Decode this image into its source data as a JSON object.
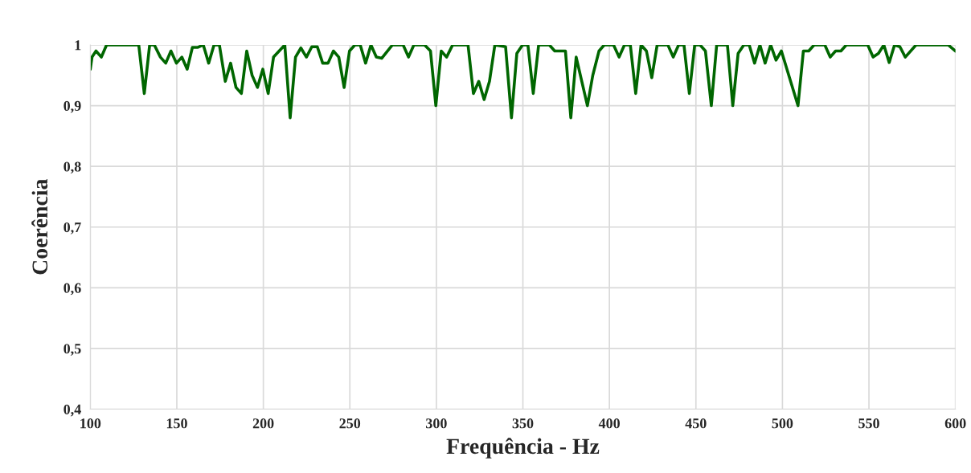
{
  "chart_data": {
    "type": "line",
    "xlabel": "Frequência - Hz",
    "ylabel": "Coerência",
    "xlim": [
      100,
      600
    ],
    "xticks": [
      100,
      150,
      200,
      250,
      300,
      350,
      400,
      450,
      500,
      550,
      600
    ],
    "ylim": [
      0.4,
      1.0
    ],
    "yticks": [
      {
        "value": 0.4,
        "label": "0,4"
      },
      {
        "value": 0.5,
        "label": "0,5"
      },
      {
        "value": 0.6,
        "label": "0,6"
      },
      {
        "value": 0.7,
        "label": "0,7"
      },
      {
        "value": 0.8,
        "label": "0,8"
      },
      {
        "value": 0.9,
        "label": "0,9"
      },
      {
        "value": 1.0,
        "label": "1"
      }
    ],
    "grid": true,
    "marker": "none",
    "line_style": "solid",
    "series": [
      {
        "color": "#006600",
        "x": [
          100,
          101,
          103.3,
          106.4,
          109.4,
          128,
          131.2,
          134.3,
          137,
          140.5,
          143.6,
          146.6,
          149.8,
          152.9,
          156,
          159,
          162.2,
          165.3,
          168.4,
          171.5,
          174.6,
          178,
          181.1,
          184.2,
          187.3,
          190.4,
          193.5,
          196.6,
          199.7,
          202.8,
          205.9,
          212.4,
          215.5,
          218.6,
          221.7,
          224.9,
          228,
          231.2,
          234.3,
          237.4,
          240.5,
          243.6,
          246.7,
          249.8,
          252.9,
          256,
          259.1,
          262.2,
          265.3,
          268.4,
          274.6,
          280.8,
          283.9,
          287,
          293.2,
          296.6,
          299.7,
          302.8,
          305.9,
          309.4,
          318.3,
          321.4,
          324.5,
          327.6,
          330.7,
          333.8,
          340,
          343.4,
          346.5,
          349.8,
          352.9,
          356,
          359.1,
          365.3,
          368.4,
          374.6,
          377.7,
          380.8,
          387.3,
          390.4,
          394,
          397,
          402.4,
          405.6,
          408.7,
          412.1,
          415.2,
          418.3,
          421.4,
          424.5,
          427.6,
          433.8,
          436.9,
          440,
          443.1,
          446.2,
          449.3,
          452.4,
          455.5,
          458.9,
          462,
          468.2,
          471.3,
          474.4,
          477.7,
          480.8,
          483.9,
          487,
          490,
          493.2,
          496.3,
          499.4,
          509,
          512.1,
          515.2,
          518.3,
          524.5,
          527.6,
          530.7,
          533.8,
          536.9,
          549.3,
          552.4,
          555.5,
          558.6,
          561.7,
          564.8,
          567.9,
          571,
          577.2,
          595.8,
          600
        ],
        "values": [
          0.96,
          0.98,
          0.99,
          0.98,
          1.0,
          1.0,
          0.92,
          1.0,
          1.0,
          0.98,
          0.97,
          0.99,
          0.97,
          0.98,
          0.96,
          0.996,
          0.996,
          1.0,
          0.97,
          1.0,
          1.0,
          0.94,
          0.97,
          0.93,
          0.92,
          0.99,
          0.95,
          0.93,
          0.96,
          0.92,
          0.98,
          1.0,
          0.88,
          0.98,
          0.995,
          0.98,
          0.997,
          0.997,
          0.97,
          0.97,
          0.99,
          0.98,
          0.93,
          0.99,
          1.0,
          1.0,
          0.97,
          1.0,
          0.98,
          0.978,
          1.0,
          1.0,
          0.98,
          1.0,
          1.0,
          0.99,
          0.9,
          0.99,
          0.98,
          1.0,
          1.0,
          0.92,
          0.94,
          0.91,
          0.94,
          1.0,
          0.997,
          0.88,
          0.986,
          1.0,
          1.0,
          0.92,
          1.0,
          1.0,
          0.99,
          0.99,
          0.88,
          0.98,
          0.9,
          0.95,
          0.99,
          1.0,
          1.0,
          0.98,
          1.0,
          1.0,
          0.92,
          1.0,
          0.99,
          0.946,
          1.0,
          1.0,
          0.98,
          1.0,
          1.0,
          0.92,
          1.0,
          1.0,
          0.99,
          0.9,
          1.0,
          1.0,
          0.9,
          0.986,
          1.0,
          1.0,
          0.97,
          1.0,
          0.97,
          1.0,
          0.975,
          0.99,
          0.9,
          0.99,
          0.99,
          1.0,
          1.0,
          0.98,
          0.99,
          0.99,
          1.0,
          1.0,
          0.98,
          0.986,
          1.0,
          0.971,
          1.0,
          0.997,
          0.98,
          1.0,
          1.0,
          0.99
        ]
      }
    ]
  }
}
